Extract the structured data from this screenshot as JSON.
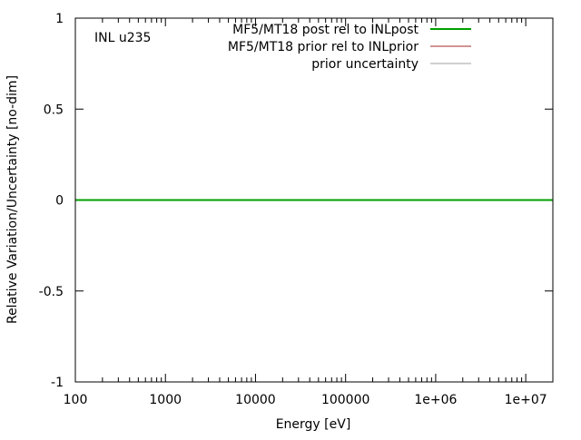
{
  "chart_data": {
    "type": "line",
    "annotation": "INL u235",
    "xlabel": "Energy [eV]",
    "ylabel": "Relative Variation/Uncertainty [no-dim]",
    "x_scale": "log",
    "xlim": [
      100,
      20000000
    ],
    "ylim": [
      -1,
      1
    ],
    "x_ticks": [
      {
        "value": 100,
        "label": "100"
      },
      {
        "value": 1000,
        "label": "1000"
      },
      {
        "value": 10000,
        "label": "10000"
      },
      {
        "value": 100000,
        "label": "100000"
      },
      {
        "value": 1000000,
        "label": "1e+06"
      },
      {
        "value": 10000000,
        "label": "1e+07"
      }
    ],
    "y_ticks": [
      {
        "value": 1,
        "label": "1"
      },
      {
        "value": 0.5,
        "label": "0.5"
      },
      {
        "value": 0,
        "label": "0"
      },
      {
        "value": -0.5,
        "label": "-0.5"
      },
      {
        "value": -1,
        "label": "-1"
      }
    ],
    "grid": false,
    "legend_position": "top-right",
    "series": [
      {
        "name": "MF5/MT18 post rel to INLpost",
        "color": "#00a000",
        "width": 2,
        "x": [
          100,
          20000000
        ],
        "y": [
          0,
          0
        ]
      },
      {
        "name": "MF5/MT18 prior rel to INLprior",
        "color": "#a52a2a",
        "width": 1,
        "x": [],
        "y": []
      },
      {
        "name": "prior uncertainty",
        "color": "#a0a0a0",
        "width": 1,
        "x": [],
        "y": []
      }
    ]
  }
}
